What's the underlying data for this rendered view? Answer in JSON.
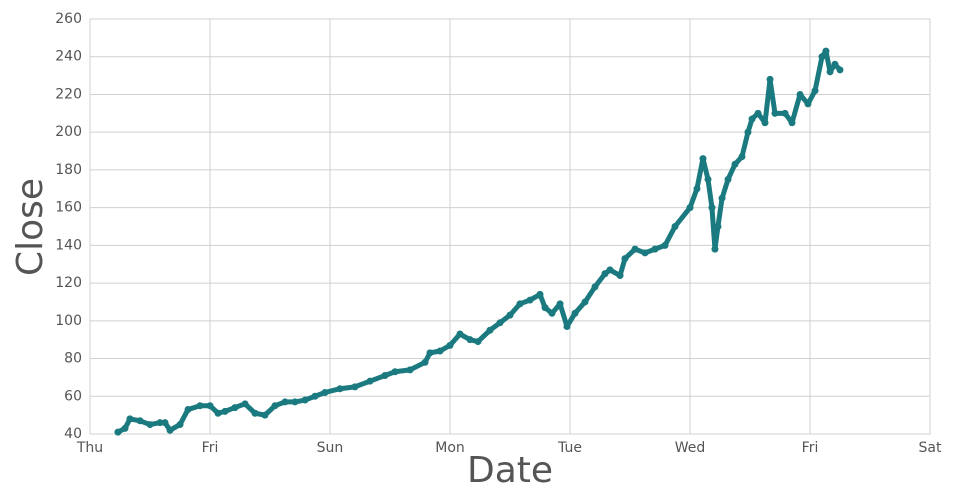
{
  "chart_data": {
    "type": "line",
    "x_label": "Date",
    "y_label": "Close",
    "x": [
      0.233,
      0.292,
      0.333,
      0.417,
      0.5,
      0.583,
      0.625,
      0.667,
      0.75,
      0.817,
      0.917,
      1.0,
      1.067,
      1.125,
      1.208,
      1.292,
      1.375,
      1.458,
      1.542,
      1.625,
      1.708,
      1.792,
      1.875,
      1.958,
      2.083,
      2.208,
      2.333,
      2.458,
      2.542,
      2.667,
      2.792,
      2.833,
      2.917,
      3.0,
      3.083,
      3.167,
      3.233,
      3.333,
      3.417,
      3.5,
      3.583,
      3.667,
      3.75,
      3.792,
      3.85,
      3.917,
      3.975,
      4.042,
      4.125,
      4.208,
      4.292,
      4.333,
      4.417,
      4.458,
      4.542,
      4.625,
      4.708,
      4.792,
      4.875,
      5.0,
      5.058,
      5.108,
      5.15,
      5.183,
      5.208,
      5.233,
      5.267,
      5.317,
      5.375,
      5.433,
      5.483,
      5.517,
      5.567,
      5.625,
      5.667,
      5.708,
      5.792,
      5.85,
      5.917,
      5.983,
      6.042,
      6.1,
      6.133,
      6.167,
      6.208,
      6.25
    ],
    "series": [
      {
        "name": "Close",
        "color": "#1b7a80",
        "values": [
          41,
          43,
          48,
          47,
          45,
          46,
          46,
          42,
          45,
          53,
          55,
          55,
          51,
          52,
          54,
          56,
          51,
          50,
          55,
          57,
          57,
          58,
          60,
          62,
          64,
          65,
          68,
          71,
          73,
          74,
          78,
          83,
          84,
          87,
          93,
          90,
          89,
          95,
          99,
          103,
          109,
          111,
          114,
          107,
          104,
          109,
          97,
          104,
          110,
          118,
          125,
          127,
          124,
          133,
          138,
          136,
          138,
          140,
          150,
          160,
          170,
          186,
          175,
          160,
          138,
          150,
          165,
          175,
          183,
          187,
          200,
          207,
          210,
          205,
          228,
          210,
          210,
          205,
          220,
          215,
          222,
          240,
          243,
          232,
          236,
          233
        ]
      }
    ],
    "xlim": [
      0,
      7
    ],
    "xticks": [
      {
        "value": 0,
        "label": "Thu"
      },
      {
        "value": 1,
        "label": "Fri"
      },
      {
        "value": 2,
        "label": "Sun"
      },
      {
        "value": 3,
        "label": "Mon"
      },
      {
        "value": 4,
        "label": "Tue"
      },
      {
        "value": 5,
        "label": "Wed"
      },
      {
        "value": 6,
        "label": "Fri"
      },
      {
        "value": 7,
        "label": "Sat"
      }
    ],
    "ylim": [
      40,
      260
    ],
    "yticks": [
      40,
      60,
      80,
      100,
      120,
      140,
      160,
      180,
      200,
      220,
      240,
      260
    ],
    "grid": true
  }
}
